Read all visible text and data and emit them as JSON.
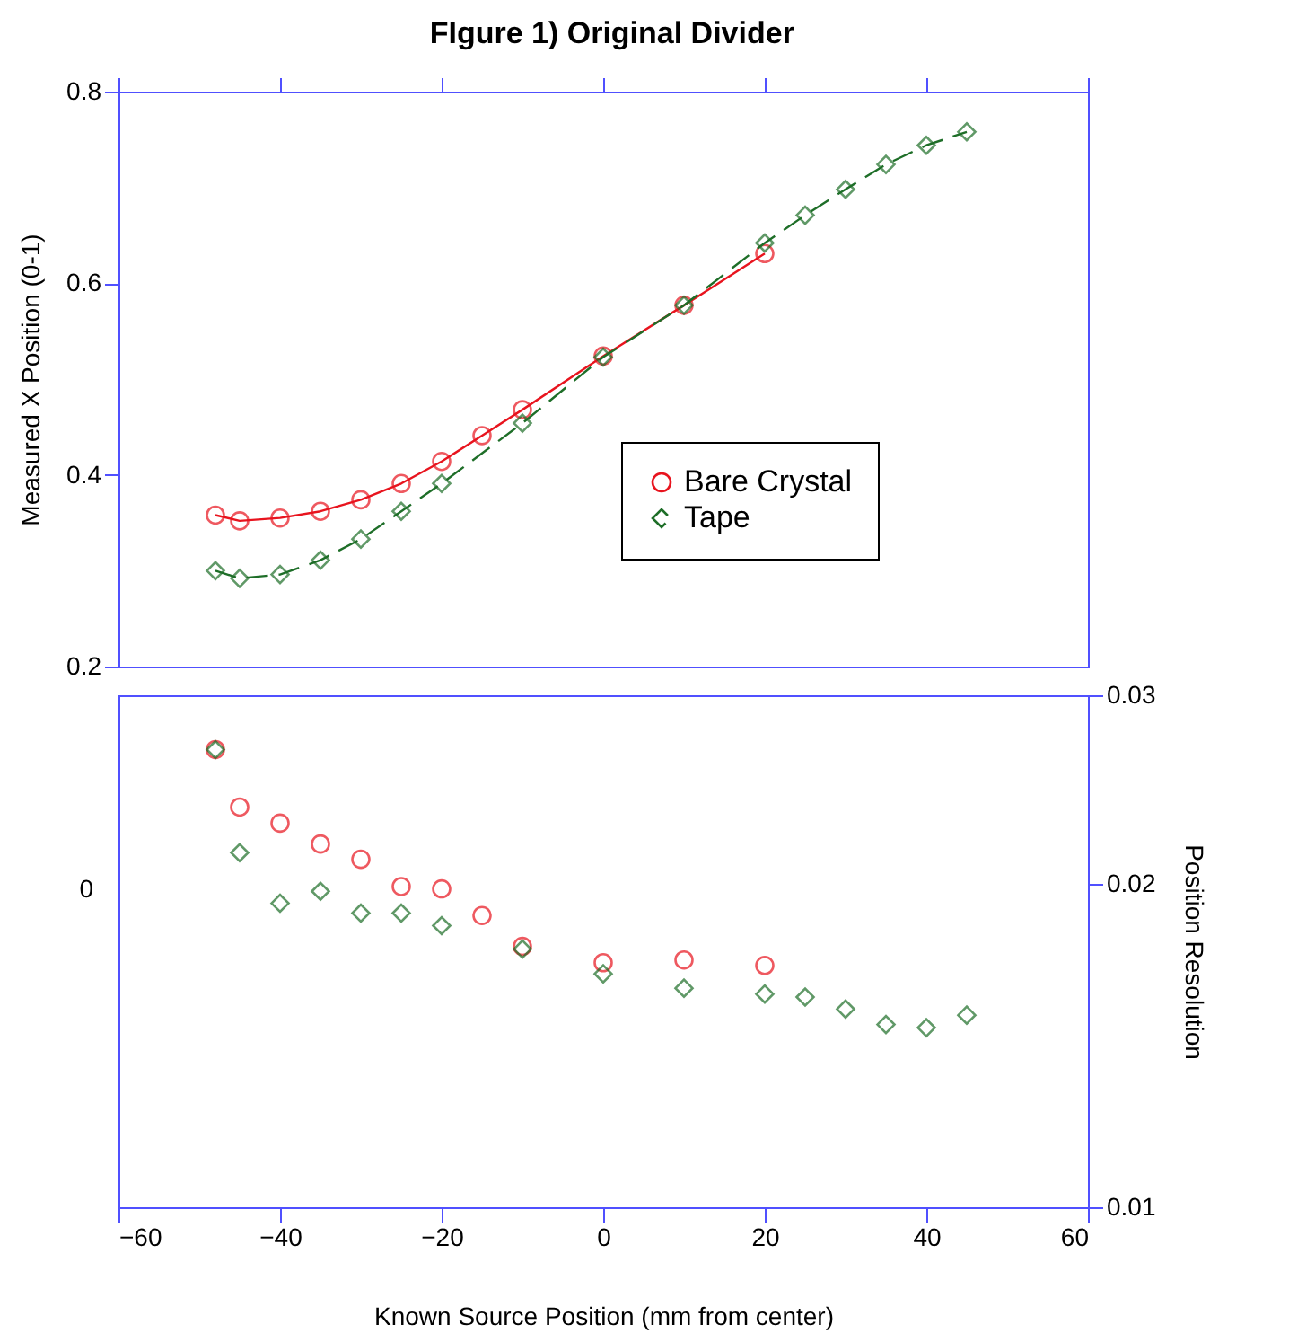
{
  "chart_data": [
    {
      "type": "line",
      "title": "FIgure 1) Original Divider",
      "ylabel": "Measured  X Position  (0-1)",
      "x": [
        -48,
        -45,
        -40,
        -35,
        -30,
        -25,
        -20,
        -15,
        -10,
        0,
        10,
        20
      ],
      "xlim": [
        -60,
        60
      ],
      "xticks": [
        -60,
        -40,
        -20,
        0,
        20,
        40,
        60
      ],
      "ylim": [
        0.2,
        0.8
      ],
      "yticks": [
        0.2,
        0.4,
        0.6,
        0.8
      ],
      "tick_labels": "y",
      "legend": "right",
      "grid": false,
      "series": [
        {
          "name": "Bare Crystal",
          "color": "#e8141e",
          "marker": "circle",
          "line_style": "solid",
          "values": [
            0.358,
            0.352,
            0.355,
            0.362,
            0.374,
            0.391,
            0.414,
            0.441,
            0.468,
            0.524,
            0.577,
            0.631
          ]
        },
        {
          "name": "Tape",
          "color": "#1e6e28",
          "marker": "diamond",
          "line_style": "dashed",
          "x": [
            -48,
            -45,
            -40,
            -35,
            -30,
            -25,
            -20,
            -10,
            0,
            10,
            20,
            25,
            30,
            35,
            40,
            45
          ],
          "values": [
            0.3,
            0.292,
            0.296,
            0.311,
            0.333,
            0.362,
            0.391,
            0.454,
            0.523,
            0.577,
            0.642,
            0.671,
            0.698,
            0.724,
            0.744,
            0.758
          ]
        }
      ]
    },
    {
      "type": "scatter",
      "xlabel": "Known Source Position (mm from center)",
      "y2label": "Position Resolution",
      "x": [
        -48,
        -45,
        -40,
        -35,
        -30,
        -25,
        -20,
        -15,
        -10,
        0,
        10,
        20
      ],
      "xlim": [
        -60,
        60
      ],
      "xticks": [
        -60,
        -40,
        -20,
        0,
        20,
        40,
        60
      ],
      "annotations": [
        "0"
      ],
      "y2lim": [
        0.01,
        0.03
      ],
      "y2ticks": [
        0.01,
        0.02,
        0.03
      ],
      "log": "y2",
      "grid": false,
      "series": [
        {
          "color": "#e8141e",
          "marker": "circle",
          "axis": "y2",
          "values": [
            0.0267,
            0.0236,
            0.0228,
            0.0218,
            0.0211,
            0.0199,
            0.0198,
            0.0187,
            0.0175,
            0.0169,
            0.017,
            0.0168
          ]
        },
        {
          "color": "#1e6e28",
          "marker": "diamond",
          "axis": "y2",
          "x": [
            -48,
            -45,
            -40,
            -35,
            -30,
            -25,
            -20,
            -10,
            0,
            10,
            20,
            25,
            30,
            35,
            40,
            45
          ],
          "values": [
            0.0267,
            0.0214,
            0.0192,
            0.0197,
            0.0188,
            0.0188,
            0.0183,
            0.0174,
            0.0165,
            0.016,
            0.0158,
            0.0157,
            0.0153,
            0.0148,
            0.0147,
            0.0151
          ]
        }
      ]
    }
  ]
}
